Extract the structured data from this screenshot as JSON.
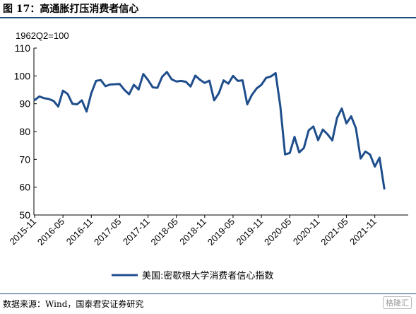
{
  "title": "图 17：高通胀打压消费者信心",
  "source": "数据来源：Wind，国泰君安证券研究",
  "watermark": "格隆汇",
  "chart_data": {
    "type": "line",
    "unit_label": "1962Q2=100",
    "ylim": [
      50,
      110
    ],
    "yticks": [
      50,
      60,
      70,
      80,
      90,
      100,
      110
    ],
    "x_ticks": [
      "2015-11",
      "2016-05",
      "2016-11",
      "2017-05",
      "2017-11",
      "2018-05",
      "2018-11",
      "2019-05",
      "2019-11",
      "2020-05",
      "2020-11",
      "2021-05",
      "2021-11"
    ],
    "x_start": "2015-11",
    "grid": false,
    "legend_position": "bottom",
    "colors": {
      "series": "#1f4e8c",
      "axis": "#000000"
    },
    "series": [
      {
        "name": "美国:密歇根大学消费者信心指数",
        "x": [
          "2015-11",
          "2015-12",
          "2016-01",
          "2016-02",
          "2016-03",
          "2016-04",
          "2016-05",
          "2016-06",
          "2016-07",
          "2016-08",
          "2016-09",
          "2016-10",
          "2016-11",
          "2016-12",
          "2017-01",
          "2017-02",
          "2017-03",
          "2017-04",
          "2017-05",
          "2017-06",
          "2017-07",
          "2017-08",
          "2017-09",
          "2017-10",
          "2017-11",
          "2017-12",
          "2018-01",
          "2018-02",
          "2018-03",
          "2018-04",
          "2018-05",
          "2018-06",
          "2018-07",
          "2018-08",
          "2018-09",
          "2018-10",
          "2018-11",
          "2018-12",
          "2019-01",
          "2019-02",
          "2019-03",
          "2019-04",
          "2019-05",
          "2019-06",
          "2019-07",
          "2019-08",
          "2019-09",
          "2019-10",
          "2019-11",
          "2019-12",
          "2020-01",
          "2020-02",
          "2020-03",
          "2020-04",
          "2020-05",
          "2020-06",
          "2020-07",
          "2020-08",
          "2020-09",
          "2020-10",
          "2020-11",
          "2020-12",
          "2021-01",
          "2021-02",
          "2021-03",
          "2021-04",
          "2021-05",
          "2021-06",
          "2021-07",
          "2021-08",
          "2021-09",
          "2021-10",
          "2021-11",
          "2021-12",
          "2022-01"
        ],
        "values": [
          91.3,
          92.6,
          92.0,
          91.7,
          91.0,
          89.0,
          94.7,
          93.5,
          90.0,
          89.8,
          91.2,
          87.2,
          93.8,
          98.2,
          98.5,
          96.3,
          96.9,
          97.0,
          97.1,
          95.0,
          93.4,
          96.8,
          95.1,
          100.7,
          98.5,
          95.9,
          95.7,
          99.7,
          101.4,
          98.8,
          98.0,
          98.2,
          97.9,
          96.2,
          100.1,
          98.6,
          97.5,
          98.3,
          91.2,
          93.8,
          98.4,
          97.2,
          100.0,
          98.2,
          98.4,
          89.8,
          93.2,
          95.5,
          96.8,
          99.3,
          99.8,
          101.0,
          89.1,
          71.8,
          72.3,
          78.1,
          72.5,
          74.1,
          80.4,
          81.8,
          76.9,
          80.7,
          79.0,
          76.8,
          84.9,
          88.3,
          82.9,
          85.5,
          81.2,
          70.3,
          72.8,
          71.7,
          67.4,
          70.6,
          59.5
        ]
      }
    ]
  }
}
